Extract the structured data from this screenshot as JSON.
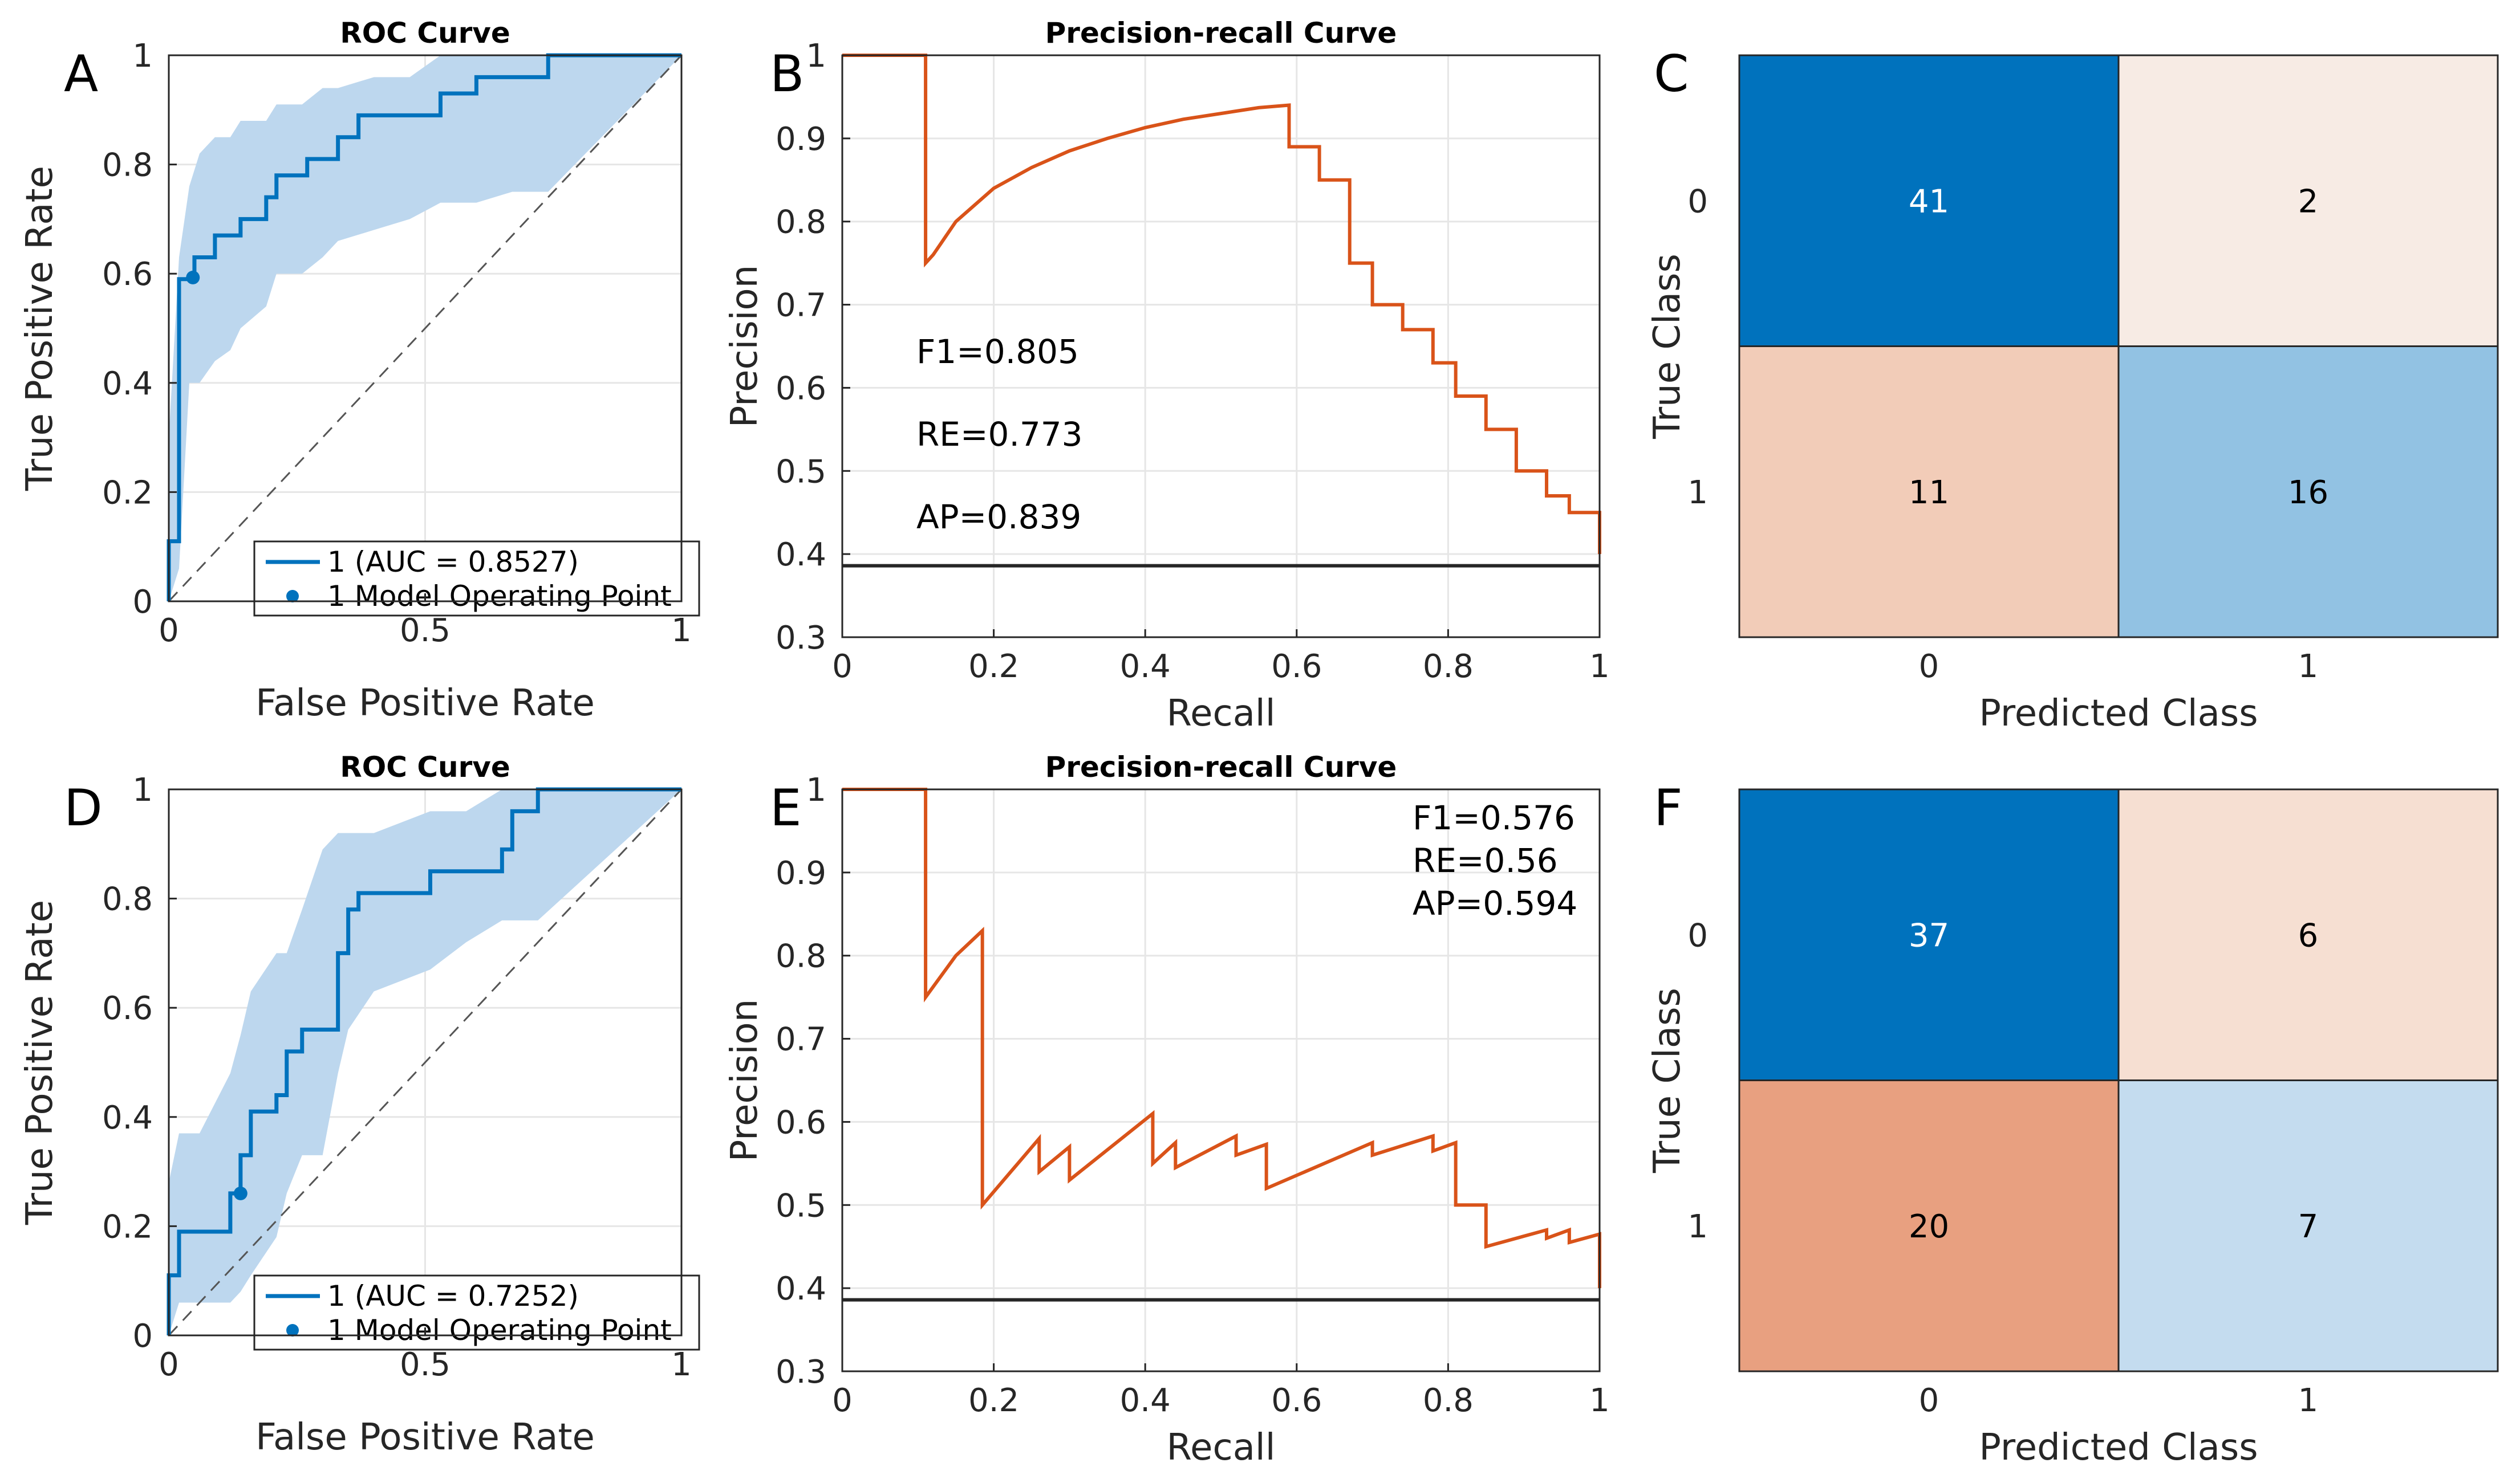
{
  "colors": {
    "roc_line": "#0072BD",
    "roc_band": "#BDD7EE",
    "pr_line": "#D95319",
    "baseline": "#262626",
    "grid": "#E6E6E6",
    "axis": "#262626"
  },
  "chart_data": [
    {
      "panel": "A",
      "type": "line",
      "title": "ROC Curve",
      "xlabel": "False Positive Rate",
      "ylabel": "True Positive Rate",
      "xlim": [
        0,
        1
      ],
      "ylim": [
        0,
        1
      ],
      "xticks": [
        "0",
        "0.5",
        "1"
      ],
      "yticks": [
        "0",
        "0.2",
        "0.4",
        "0.6",
        "0.8",
        "1"
      ],
      "legend": [
        "1 (AUC = 0.8527)",
        "1 Model Operating Point"
      ],
      "series": [
        {
          "name": "roc",
          "x": [
            0,
            0,
            0.02,
            0.02,
            0.05,
            0.05,
            0.09,
            0.09,
            0.14,
            0.14,
            0.19,
            0.19,
            0.21,
            0.21,
            0.27,
            0.27,
            0.33,
            0.33,
            0.37,
            0.37,
            0.44,
            0.44,
            0.53,
            0.53,
            0.6,
            0.6,
            0.67,
            0.67,
            0.74,
            0.74,
            1.0
          ],
          "y": [
            0,
            0.11,
            0.11,
            0.59,
            0.59,
            0.63,
            0.63,
            0.67,
            0.67,
            0.7,
            0.7,
            0.74,
            0.74,
            0.78,
            0.78,
            0.81,
            0.81,
            0.85,
            0.85,
            0.89,
            0.89,
            0.89,
            0.89,
            0.93,
            0.93,
            0.96,
            0.96,
            0.96,
            0.96,
            1.0,
            1.0
          ]
        },
        {
          "name": "band_upper",
          "x": [
            0,
            0.02,
            0.04,
            0.06,
            0.09,
            0.12,
            0.14,
            0.19,
            0.21,
            0.26,
            0.3,
            0.33,
            0.4,
            0.47,
            0.53,
            0.6,
            0.67,
            0.74,
            1.0
          ],
          "y": [
            0.3,
            0.63,
            0.76,
            0.82,
            0.85,
            0.85,
            0.88,
            0.88,
            0.91,
            0.91,
            0.94,
            0.94,
            0.96,
            0.96,
            1.0,
            1.0,
            1.0,
            1.0,
            1.0
          ]
        },
        {
          "name": "band_lower",
          "x": [
            0,
            0.02,
            0.04,
            0.06,
            0.09,
            0.12,
            0.14,
            0.19,
            0.21,
            0.26,
            0.3,
            0.33,
            0.4,
            0.47,
            0.53,
            0.6,
            0.67,
            0.74
          ],
          "y": [
            0,
            0.06,
            0.4,
            0.4,
            0.44,
            0.46,
            0.5,
            0.54,
            0.6,
            0.6,
            0.63,
            0.66,
            0.68,
            0.7,
            0.73,
            0.73,
            0.75,
            0.75
          ]
        }
      ],
      "operating_point": {
        "x": 0.047,
        "y": 0.593
      }
    },
    {
      "panel": "B",
      "type": "line",
      "title": "Precision-recall Curve",
      "xlabel": "Recall",
      "ylabel": "Precision",
      "xlim": [
        0,
        1
      ],
      "ylim": [
        0.3,
        1
      ],
      "xticks": [
        "0",
        "0.2",
        "0.4",
        "0.6",
        "0.8",
        "1"
      ],
      "yticks": [
        "0.3",
        "0.4",
        "0.5",
        "0.6",
        "0.7",
        "0.8",
        "0.9",
        "1"
      ],
      "baseline": 0.386,
      "annotations": [
        "F1=0.805",
        "RE=0.773",
        "AP=0.839"
      ],
      "series": [
        {
          "name": "pr",
          "x": [
            0,
            0.11,
            0.11,
            0.12,
            0.15,
            0.2,
            0.25,
            0.3,
            0.35,
            0.4,
            0.45,
            0.5,
            0.55,
            0.59,
            0.59,
            0.63,
            0.63,
            0.67,
            0.67,
            0.7,
            0.7,
            0.74,
            0.74,
            0.78,
            0.78,
            0.81,
            0.81,
            0.85,
            0.85,
            0.89,
            0.89,
            0.93,
            0.93,
            0.96,
            0.96,
            1.0,
            1.0
          ],
          "y": [
            1.0,
            1.0,
            0.75,
            0.76,
            0.8,
            0.84,
            0.865,
            0.885,
            0.9,
            0.913,
            0.923,
            0.93,
            0.937,
            0.94,
            0.89,
            0.89,
            0.85,
            0.85,
            0.75,
            0.75,
            0.7,
            0.7,
            0.67,
            0.67,
            0.63,
            0.63,
            0.59,
            0.59,
            0.55,
            0.55,
            0.5,
            0.5,
            0.47,
            0.47,
            0.45,
            0.45,
            0.4
          ]
        }
      ]
    },
    {
      "panel": "C",
      "type": "heatmap",
      "xlabel": "Predicted Class",
      "ylabel": "True Class",
      "categories_x": [
        "0",
        "1"
      ],
      "categories_y": [
        "0",
        "1"
      ],
      "values": [
        [
          41,
          2
        ],
        [
          11,
          16
        ]
      ],
      "cell_colors": [
        [
          "#0072BD",
          "#F7EBE4"
        ],
        [
          "#F2CCB8",
          "#92C2E3"
        ]
      ],
      "text_colors": [
        [
          "#FFFFFF",
          "#000000"
        ],
        [
          "#000000",
          "#000000"
        ]
      ]
    },
    {
      "panel": "D",
      "type": "line",
      "title": "ROC Curve",
      "xlabel": "False Positive Rate",
      "ylabel": "True Positive Rate",
      "xlim": [
        0,
        1
      ],
      "ylim": [
        0,
        1
      ],
      "xticks": [
        "0",
        "0.5",
        "1"
      ],
      "yticks": [
        "0",
        "0.2",
        "0.4",
        "0.6",
        "0.8",
        "1"
      ],
      "legend": [
        "1 (AUC = 0.7252)",
        "1 Model Operating Point"
      ],
      "series": [
        {
          "name": "roc",
          "x": [
            0,
            0,
            0.02,
            0.02,
            0.12,
            0.12,
            0.14,
            0.14,
            0.16,
            0.16,
            0.21,
            0.21,
            0.23,
            0.23,
            0.26,
            0.26,
            0.33,
            0.33,
            0.35,
            0.35,
            0.37,
            0.37,
            0.51,
            0.51,
            0.65,
            0.65,
            0.67,
            0.67,
            0.72,
            0.72,
            1.0
          ],
          "y": [
            0,
            0.11,
            0.11,
            0.19,
            0.19,
            0.26,
            0.26,
            0.33,
            0.33,
            0.41,
            0.41,
            0.44,
            0.44,
            0.52,
            0.52,
            0.56,
            0.56,
            0.7,
            0.7,
            0.78,
            0.78,
            0.81,
            0.81,
            0.85,
            0.85,
            0.89,
            0.89,
            0.96,
            0.96,
            1.0,
            1.0
          ]
        },
        {
          "name": "band_upper",
          "x": [
            0,
            0.02,
            0.06,
            0.12,
            0.14,
            0.16,
            0.21,
            0.23,
            0.26,
            0.3,
            0.33,
            0.35,
            0.4,
            0.51,
            0.58,
            0.65,
            0.72,
            1.0
          ],
          "y": [
            0.28,
            0.37,
            0.37,
            0.48,
            0.55,
            0.63,
            0.7,
            0.7,
            0.78,
            0.89,
            0.92,
            0.92,
            0.92,
            0.96,
            0.96,
            1.0,
            1.0,
            1.0
          ]
        },
        {
          "name": "band_lower",
          "x": [
            0,
            0.02,
            0.06,
            0.12,
            0.14,
            0.16,
            0.21,
            0.23,
            0.26,
            0.3,
            0.33,
            0.35,
            0.4,
            0.51,
            0.58,
            0.65,
            0.72
          ],
          "y": [
            0,
            0.06,
            0.06,
            0.06,
            0.08,
            0.11,
            0.18,
            0.26,
            0.33,
            0.33,
            0.48,
            0.56,
            0.63,
            0.67,
            0.72,
            0.76,
            0.76
          ]
        }
      ],
      "operating_point": {
        "x": 0.14,
        "y": 0.26
      }
    },
    {
      "panel": "E",
      "type": "line",
      "title": "Precision-recall Curve",
      "xlabel": "Recall",
      "ylabel": "Precision",
      "xlim": [
        0,
        1
      ],
      "ylim": [
        0.3,
        1
      ],
      "xticks": [
        "0",
        "0.2",
        "0.4",
        "0.6",
        "0.8",
        "1"
      ],
      "yticks": [
        "0.3",
        "0.4",
        "0.5",
        "0.6",
        "0.7",
        "0.8",
        "0.9",
        "1"
      ],
      "baseline": 0.386,
      "annotations": [
        "F1=0.576",
        "RE=0.56",
        "AP=0.594"
      ],
      "series": [
        {
          "name": "pr",
          "x": [
            0,
            0.11,
            0.11,
            0.15,
            0.185,
            0.185,
            0.26,
            0.26,
            0.3,
            0.3,
            0.41,
            0.41,
            0.44,
            0.44,
            0.52,
            0.52,
            0.56,
            0.56,
            0.7,
            0.7,
            0.78,
            0.78,
            0.81,
            0.81,
            0.85,
            0.85,
            0.93,
            0.93,
            0.96,
            0.96,
            1.0,
            1.0
          ],
          "y": [
            1.0,
            1.0,
            0.75,
            0.8,
            0.83,
            0.5,
            0.58,
            0.54,
            0.57,
            0.53,
            0.61,
            0.55,
            0.575,
            0.545,
            0.583,
            0.56,
            0.573,
            0.52,
            0.575,
            0.56,
            0.583,
            0.565,
            0.575,
            0.5,
            0.5,
            0.45,
            0.47,
            0.46,
            0.47,
            0.455,
            0.465,
            0.4
          ]
        }
      ]
    },
    {
      "panel": "F",
      "type": "heatmap",
      "xlabel": "Predicted Class",
      "ylabel": "True Class",
      "categories_x": [
        "0",
        "1"
      ],
      "categories_y": [
        "0",
        "1"
      ],
      "values": [
        [
          37,
          6
        ],
        [
          20,
          7
        ]
      ],
      "cell_colors": [
        [
          "#0072BD",
          "#F6DFD2"
        ],
        [
          "#E8A080",
          "#C4DCEF"
        ]
      ],
      "text_colors": [
        [
          "#FFFFFF",
          "#000000"
        ],
        [
          "#000000",
          "#000000"
        ]
      ]
    }
  ]
}
